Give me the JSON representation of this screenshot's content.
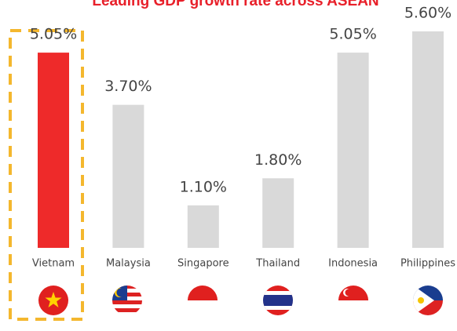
{
  "chart_data": {
    "type": "bar",
    "title": "Leading GDP growth rate across ASEAN",
    "categories": [
      "Vietnam",
      "Malaysia",
      "Singapore",
      "Thailand",
      "Indonesia",
      "Philippines"
    ],
    "values": [
      5.05,
      3.7,
      1.1,
      1.8,
      5.05,
      5.6
    ],
    "value_labels": [
      "5.05%",
      "3.70%",
      "1.10%",
      "1.80%",
      "5.05%",
      "5.60%"
    ],
    "colors": [
      "#ee2a2a",
      "#d9d9d9",
      "#d9d9d9",
      "#d9d9d9",
      "#d9d9d9",
      "#d9d9d9"
    ],
    "ylim": [
      0,
      5.6
    ]
  }
}
